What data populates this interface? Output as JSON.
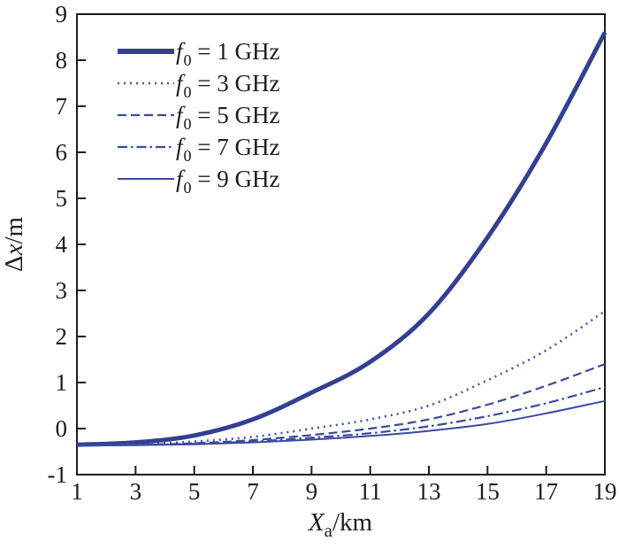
{
  "figure": {
    "background": "#ffffff",
    "axis_color": "#1c1c1c",
    "text_color": "#1c1c1c",
    "accent_line_color": "#3a4a9e"
  },
  "chart_data": {
    "type": "line",
    "title": "",
    "xlabel": {
      "var": "X",
      "sub": "a",
      "unit": "/km"
    },
    "ylabel": {
      "delta": "Δ",
      "var": "x",
      "unit": "/m"
    },
    "xlim": [
      1,
      19
    ],
    "ylim": [
      -1,
      9
    ],
    "x_ticks": [
      1,
      3,
      5,
      7,
      9,
      11,
      13,
      15,
      17,
      19
    ],
    "y_ticks": [
      -1,
      0,
      1,
      2,
      3,
      4,
      5,
      6,
      7,
      8,
      9
    ],
    "grid": false,
    "legend_position": "inside-top-left",
    "x": [
      1,
      3,
      5,
      7,
      9,
      11,
      13,
      15,
      17,
      19
    ],
    "series": [
      {
        "name": "f0 = 1 GHz",
        "legend_symbol": "f",
        "legend_subscript": "0",
        "legend_rest": " = 1 GHz",
        "line_style": "solid-thick",
        "color": "#343f92",
        "values": [
          -0.35,
          -0.3,
          -0.15,
          0.2,
          0.78,
          1.45,
          2.5,
          4.15,
          6.2,
          8.6
        ]
      },
      {
        "name": "f0 = 3 GHz",
        "legend_symbol": "f",
        "legend_subscript": "0",
        "legend_rest": " = 3 GHz",
        "line_style": "dotted",
        "color": "#4052ae",
        "values": [
          -0.36,
          -0.34,
          -0.28,
          -0.18,
          0.0,
          0.2,
          0.5,
          1.05,
          1.7,
          2.55
        ]
      },
      {
        "name": "f0 = 5 GHz",
        "legend_symbol": "f",
        "legend_subscript": "0",
        "legend_rest": " = 5 GHz",
        "line_style": "dashed",
        "color": "#3a4a9e",
        "values": [
          -0.36,
          -0.35,
          -0.32,
          -0.25,
          -0.14,
          0.0,
          0.2,
          0.52,
          0.93,
          1.4
        ]
      },
      {
        "name": "f0 = 7 GHz",
        "legend_symbol": "f",
        "legend_subscript": "0",
        "legend_rest": " = 7 GHz",
        "line_style": "dash-dot",
        "color": "#3a4a9e",
        "values": [
          -0.36,
          -0.35,
          -0.33,
          -0.28,
          -0.2,
          -0.1,
          0.05,
          0.27,
          0.55,
          0.9
        ]
      },
      {
        "name": "f0 = 9 GHz",
        "legend_symbol": "f",
        "legend_subscript": "0",
        "legend_rest": " = 9 GHz",
        "line_style": "solid-thin",
        "color": "#3a4a9e",
        "values": [
          -0.37,
          -0.36,
          -0.34,
          -0.3,
          -0.24,
          -0.16,
          -0.05,
          0.1,
          0.33,
          0.6
        ]
      }
    ]
  }
}
